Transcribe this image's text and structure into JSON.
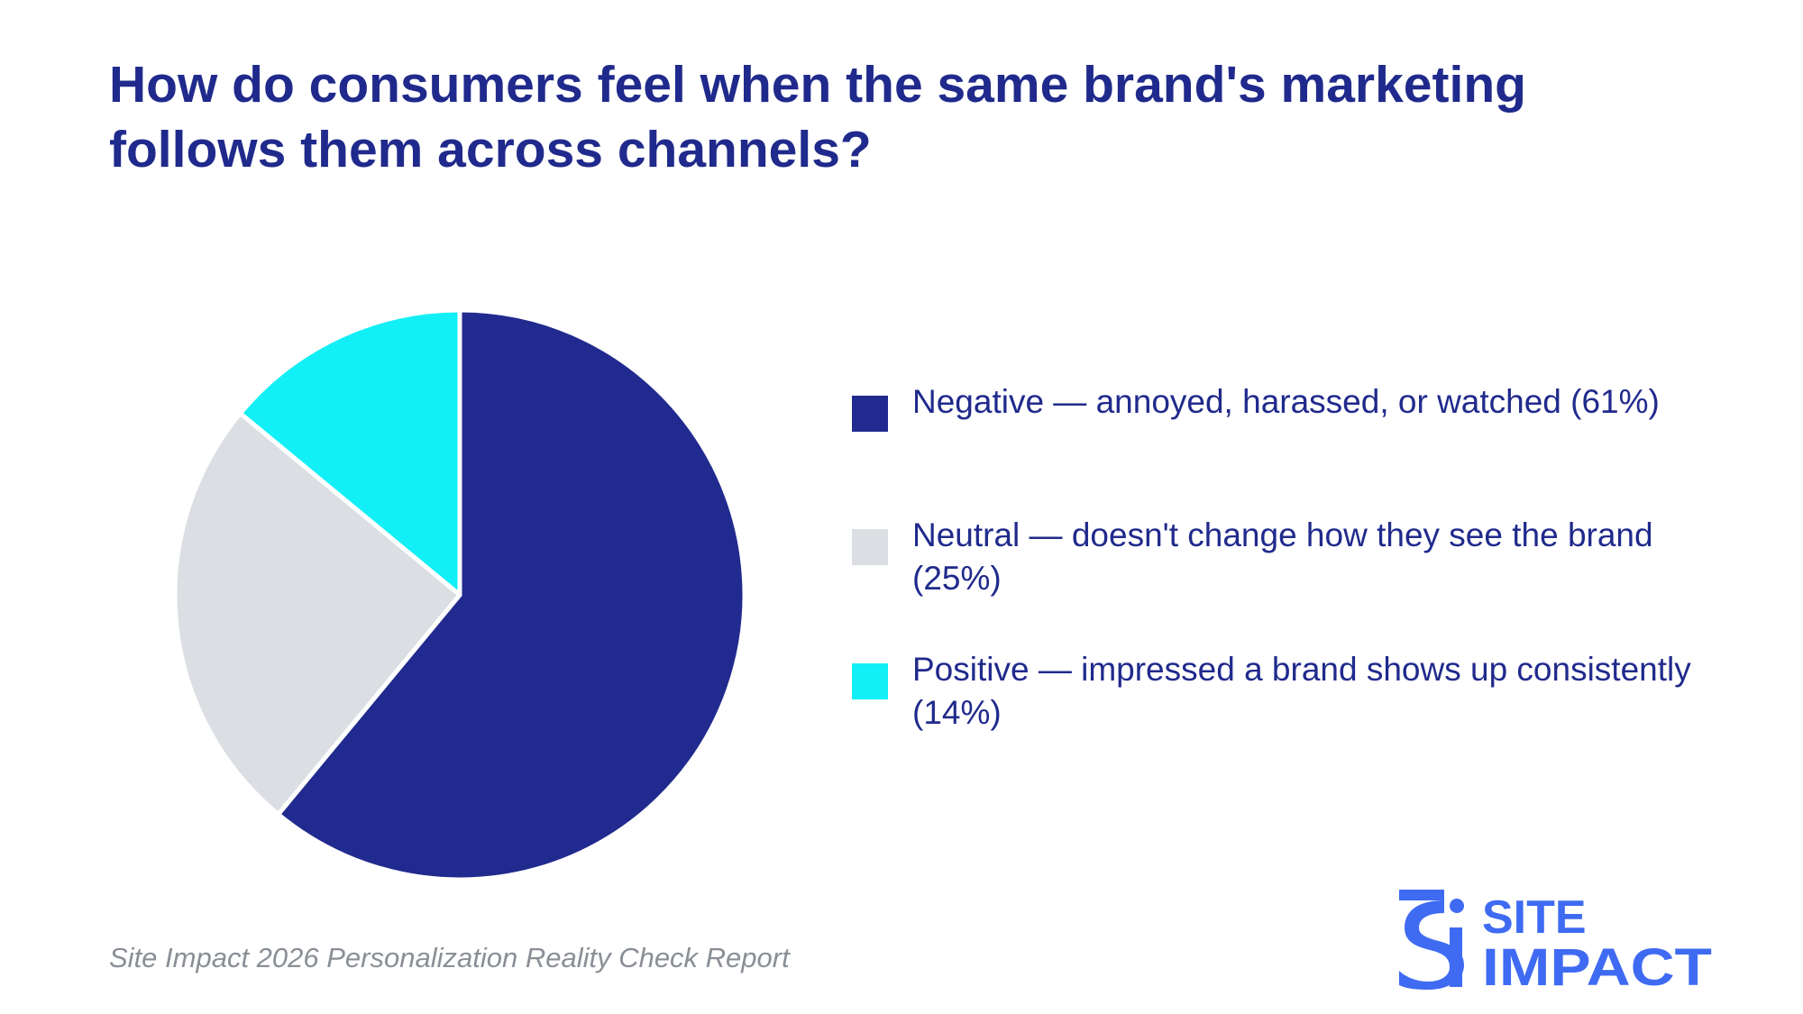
{
  "title": "How do consumers feel when the same brand's marketing follows them across channels?",
  "source": "Site Impact 2026 Personalization Reality Check Report",
  "logo": {
    "line1": "SITE",
    "line2": "IMPACT",
    "mark": "si"
  },
  "colors": {
    "title": "#202a8c",
    "source": "#8a8f96",
    "logo": "#3f6bf2"
  },
  "chart_data": {
    "type": "pie",
    "legend_position": "right",
    "slices": [
      {
        "label": "Negative — annoyed, harassed, or watched (61%)",
        "value": 61,
        "color": "#212a8e"
      },
      {
        "label": "Neutral — doesn't change how they see the brand (25%)",
        "value": 25,
        "color": "#dbdee2"
      },
      {
        "label": "Positive — impressed a brand shows up consistently (14%)",
        "value": 14,
        "color": "#13eff6"
      }
    ]
  }
}
